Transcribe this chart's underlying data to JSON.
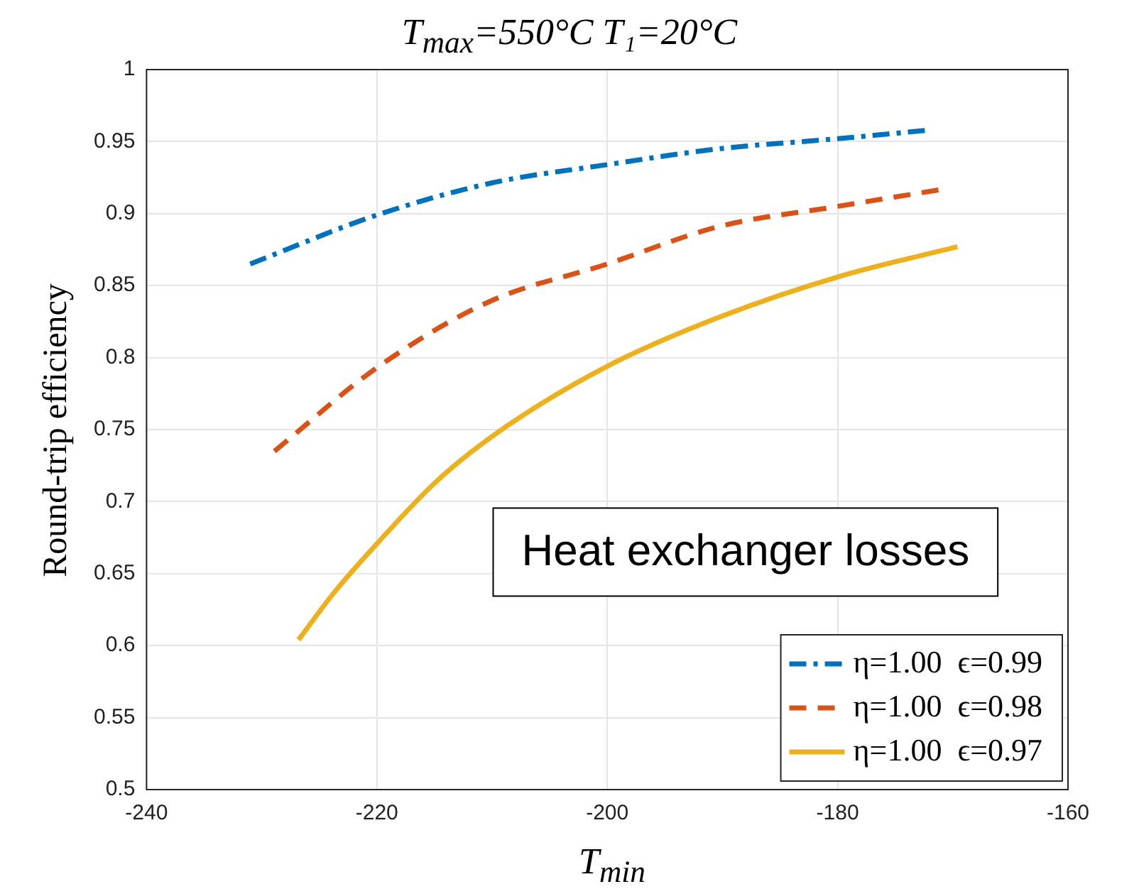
{
  "chart_data": {
    "type": "line",
    "title": "T$_{max}$=550°C  T₁=20°C",
    "xlabel": "T$_{min}$",
    "ylabel": "Round-trip efficiency",
    "xlim": [
      -240,
      -160
    ],
    "xticks": [
      -240,
      -220,
      -200,
      -180,
      -160
    ],
    "ylim": [
      0.5,
      1
    ],
    "yticks": [
      0.5,
      0.55,
      0.6,
      0.65,
      0.7,
      0.75,
      0.8,
      0.85,
      0.9,
      0.95,
      1
    ],
    "grid": true,
    "legend": "bottom right",
    "marker": "none",
    "annotations": [
      "Heat exchanger losses"
    ],
    "series": [
      {
        "name": "η=1.00  ϵ=0.99",
        "color": "#0072bd",
        "line_style": "dashdot",
        "x": [
          -231,
          -220,
          -210.2,
          -200,
          -190.3,
          -180,
          -172
        ],
        "values": [
          0.865,
          0.899,
          0.921,
          0.934,
          0.945,
          0.952,
          0.958
        ]
      },
      {
        "name": "η=1.00  ϵ=0.98",
        "color": "#d95319",
        "line_style": "dashed",
        "x": [
          -228.9,
          -220,
          -210.2,
          -200,
          -190.3,
          -180,
          -170.8
        ],
        "values": [
          0.735,
          0.793,
          0.839,
          0.865,
          0.891,
          0.905,
          0.917
        ]
      },
      {
        "name": "η=1.00  ϵ=0.97",
        "color": "#edb120",
        "line_style": "solid",
        "x": [
          -226.8,
          -223.7,
          -220.2,
          -214.7,
          -208.8,
          -200,
          -190.3,
          -180,
          -169.6
        ],
        "values": [
          0.604,
          0.637,
          0.669,
          0.715,
          0.752,
          0.794,
          0.828,
          0.856,
          0.877
        ]
      }
    ]
  }
}
